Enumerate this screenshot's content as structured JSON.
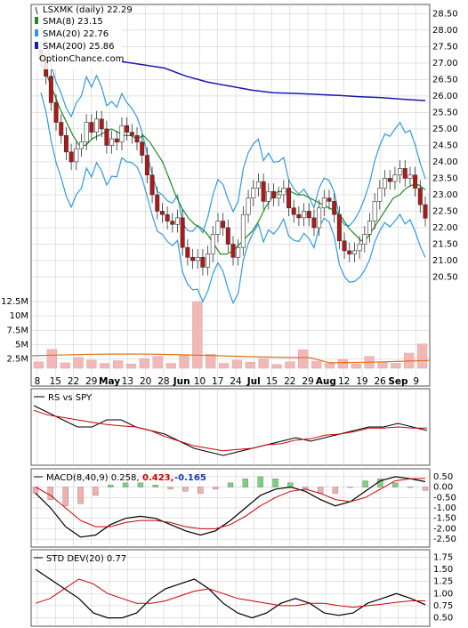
{
  "colors": {
    "candle_up": "#ffffff",
    "candle_down": "#b01818",
    "candle_up_purple": "#cc99cc",
    "sma8": "#1f8a1f",
    "sma20": "#3399dd",
    "sma200": "#1a1aaa",
    "bollinger_yellow": "#e8e000",
    "volume_bar": "#f2b8b8",
    "volume_avg": "#e07020",
    "rs_line": "#000000",
    "signal_red": "#cc0000",
    "hist_green": "#7fcf7f",
    "hist_pink": "#f0b0b0",
    "grid": "#c8c8c8",
    "macd_value_color": "#cc0000",
    "macd_hist_color": "#1a3aaa"
  },
  "legend": {
    "symbol": "LSXMK (daily) 22.29",
    "sma8": "SMA(8) 23.15",
    "sma20": "SMA(20) 22.76",
    "sma200": "SMA(200) 25.86",
    "watermark": "OptionChance.com"
  },
  "xaxis": {
    "labels": [
      "8",
      "15",
      "22",
      "29",
      "May",
      "13",
      "20",
      "28",
      "Jun",
      "10",
      "17",
      "24",
      "Jul",
      "15",
      "22",
      "29",
      "Aug",
      "12",
      "19",
      "26",
      "Sep",
      "9"
    ]
  },
  "volume_axis": {
    "labels": [
      "12.5M",
      "10M",
      "7.5M",
      "5M",
      "2.5M"
    ]
  },
  "rs": {
    "title": "RS vs SPY"
  },
  "macd": {
    "title": "MACD(8,40,9) 0.258,",
    "value2": "0.423,",
    "value3": "-0.165",
    "axis_labels": [
      "0.50",
      "0.00",
      "-0.50",
      "-1.00",
      "-1.50",
      "-2.00",
      "-2.50"
    ]
  },
  "std": {
    "title": "STD DEV(20) 0.77",
    "axis_labels": [
      "1.75",
      "1.50",
      "1.25",
      "1.00",
      "0.75",
      "0.50"
    ]
  },
  "chart_data": {
    "type": "candlestick",
    "title": "LSXMK (daily) 22.29",
    "ylim": [
      20.0,
      28.7
    ],
    "yticks": [
      "28.50",
      "28.00",
      "27.50",
      "27.00",
      "26.50",
      "26.00",
      "25.50",
      "25.00",
      "24.50",
      "24.00",
      "23.50",
      "23.00",
      "22.50",
      "22.00",
      "21.50",
      "21.00",
      "20.50"
    ],
    "price": [
      27.1,
      26.6,
      25.8,
      25.2,
      24.8,
      24.3,
      24.0,
      24.4,
      24.6,
      25.2,
      24.9,
      25.3,
      25.0,
      24.5,
      24.7,
      24.6,
      25.1,
      24.9,
      24.8,
      24.6,
      24.2,
      23.6,
      23.0,
      22.5,
      22.4,
      22.2,
      22.1,
      22.3,
      21.4,
      21.1,
      21.0,
      21.1,
      20.8,
      21.2,
      21.8,
      22.2,
      22.0,
      21.5,
      21.1,
      21.4,
      22.4,
      22.9,
      23.2,
      23.4,
      22.8,
      23.1,
      22.9,
      23.0,
      23.2,
      22.6,
      22.4,
      22.3,
      22.5,
      22.3,
      22.0,
      22.6,
      22.9,
      22.8,
      22.4,
      21.6,
      21.3,
      21.2,
      21.3,
      21.5,
      21.8,
      22.2,
      22.8,
      23.2,
      23.5,
      23.4,
      23.6,
      23.8,
      23.5,
      23.6,
      23.2,
      22.7,
      22.29
    ],
    "sma8": [
      27.0,
      26.6,
      26.1,
      25.6,
      25.2,
      24.8,
      24.5,
      24.5,
      24.7,
      24.8,
      24.9,
      25.0,
      24.9,
      24.8,
      24.8,
      24.7,
      24.8,
      24.6,
      24.3,
      24.0,
      23.5,
      23.0,
      22.6,
      22.3,
      22.1,
      22.0,
      21.8,
      21.5,
      21.2,
      21.2,
      21.3,
      21.5,
      21.7,
      21.9,
      22.2,
      22.6,
      22.9,
      23.1,
      23.1,
      23.1,
      23.0,
      23.0,
      22.9,
      22.8,
      22.7,
      22.6,
      22.5,
      22.3,
      22.0,
      21.8,
      21.6,
      21.7,
      22.0,
      22.3,
      22.6,
      22.9,
      23.0,
      23.2,
      23.3,
      23.3,
      23.15
    ],
    "sma200": [
      27.05,
      26.95,
      26.85,
      26.6,
      26.42,
      26.3,
      26.18,
      26.1,
      26.08,
      26.05,
      26.02,
      25.98,
      25.95,
      25.9,
      25.86
    ],
    "volume_millions": [
      1.2,
      3.5,
      1.0,
      2.0,
      1.5,
      0.9,
      1.4,
      0.8,
      1.8,
      2.2,
      0.9,
      2.4,
      12.3,
      2.6,
      0.9,
      1.5,
      1.1,
      1.8,
      0.7,
      1.2,
      3.4,
      1.3,
      0.9,
      1.6,
      0.8,
      2.2,
      1.1,
      0.9,
      2.8,
      4.5
    ],
    "rs_vs_spy": [
      0.8,
      0.7,
      0.6,
      0.5,
      0.5,
      0.6,
      0.6,
      0.5,
      0.45,
      0.4,
      0.3,
      0.2,
      0.15,
      0.1,
      0.15,
      0.2,
      0.25,
      0.3,
      0.35,
      0.3,
      0.35,
      0.4,
      0.45,
      0.5,
      0.5,
      0.55,
      0.5,
      0.45
    ],
    "macd_series": [
      -0.3,
      -1.0,
      -1.9,
      -2.4,
      -2.3,
      -1.8,
      -1.5,
      -1.4,
      -1.5,
      -1.8,
      -2.1,
      -2.3,
      -2.1,
      -1.6,
      -1.0,
      -0.4,
      -0.1,
      0.0,
      -0.2,
      -0.6,
      -0.9,
      -0.7,
      -0.2,
      0.3,
      0.5,
      0.4,
      0.26
    ],
    "macd_signal": [
      0.0,
      -0.4,
      -1.0,
      -1.6,
      -1.9,
      -1.9,
      -1.7,
      -1.6,
      -1.6,
      -1.7,
      -1.9,
      -2.0,
      -2.0,
      -1.8,
      -1.4,
      -0.9,
      -0.5,
      -0.2,
      -0.1,
      -0.3,
      -0.6,
      -0.7,
      -0.5,
      -0.1,
      0.3,
      0.4,
      0.42
    ],
    "std_dev": [
      1.5,
      1.3,
      1.1,
      0.9,
      0.6,
      0.5,
      0.5,
      0.6,
      0.9,
      1.1,
      1.2,
      1.3,
      1.1,
      0.8,
      0.6,
      0.5,
      0.6,
      0.8,
      0.9,
      0.8,
      0.6,
      0.55,
      0.6,
      0.8,
      0.9,
      1.0,
      0.9,
      0.77
    ],
    "std_avg": [
      0.8,
      0.9,
      1.1,
      1.3,
      1.2,
      1.0,
      0.9,
      0.8,
      0.8,
      0.85,
      0.95,
      1.05,
      1.1,
      1.0,
      0.9,
      0.85,
      0.8,
      0.75,
      0.75,
      0.8,
      0.8,
      0.75,
      0.72,
      0.75,
      0.78,
      0.82,
      0.85,
      0.85
    ]
  }
}
